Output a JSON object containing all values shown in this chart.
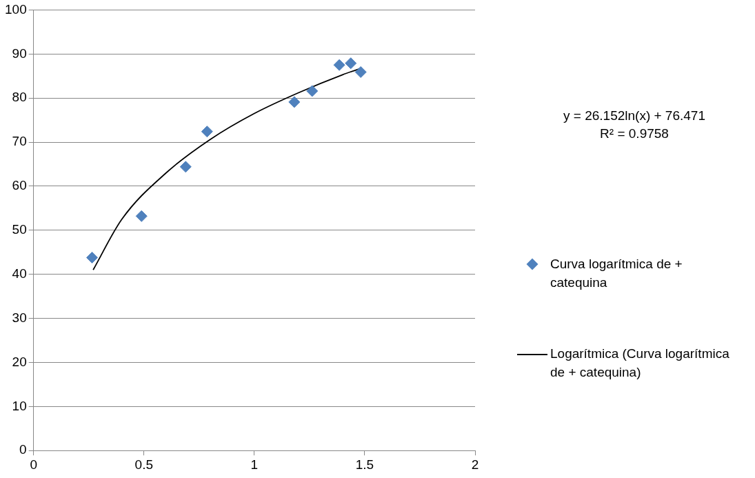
{
  "chart_data": {
    "type": "scatter",
    "xlim": [
      0,
      2
    ],
    "xticks": [
      0,
      0.5,
      1,
      1.5,
      2
    ],
    "ylim": [
      0,
      100
    ],
    "yticks": [
      0,
      10,
      20,
      30,
      40,
      50,
      60,
      70,
      80,
      90,
      100
    ],
    "grid": "y",
    "legend": "right",
    "annotations": [
      "y = 26.152ln(x) + 76.471",
      "R² = 0.9758"
    ],
    "series": [
      {
        "name": "Curva logarítmica de + catequina",
        "marker": "diamond",
        "color": "#4f81bd",
        "x": [
          0.265,
          0.489,
          0.689,
          0.786,
          1.181,
          1.262,
          1.385,
          1.437,
          1.482
        ],
        "values": [
          43.8,
          53.2,
          64.4,
          72.4,
          79.1,
          81.6,
          87.5,
          87.9,
          85.9
        ]
      },
      {
        "name": "Logarítmica (Curva logarítmica de + catequina)",
        "type": "line",
        "marker": "none",
        "color": "#000000",
        "line_style": "solid",
        "x": [
          0.27,
          0.4,
          0.6,
          0.8,
          1.0,
          1.2,
          1.4,
          1.48
        ],
        "values": [
          41,
          52.5,
          63,
          70.6,
          76.5,
          81.2,
          85.3,
          86.7
        ]
      }
    ]
  }
}
